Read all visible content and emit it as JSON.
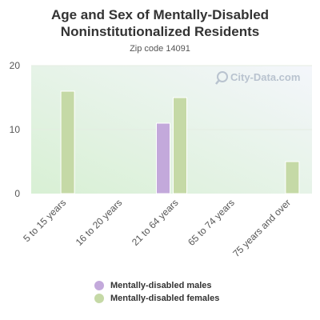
{
  "watermark": "City-Data.com",
  "colors": {
    "males": "#c3a9db",
    "females": "#c5d9a6"
  },
  "chart_data": {
    "type": "bar",
    "title": "Age and Sex of Mentally-Disabled Noninstitutionalized Residents",
    "subtitle": "Zip code 14091",
    "categories": [
      "5 to 15 years",
      "16 to 20 years",
      "21 to 64 years",
      "65 to 74 years",
      "75 years and over"
    ],
    "series": [
      {
        "name": "Mentally-disabled males",
        "values": [
          0,
          0,
          11,
          0,
          0
        ]
      },
      {
        "name": "Mentally-disabled females",
        "values": [
          16,
          0,
          15,
          0,
          5
        ]
      }
    ],
    "yticks": [
      0,
      10,
      20
    ],
    "ylim": [
      0,
      20
    ],
    "grid": true,
    "legend_position": "bottom"
  }
}
